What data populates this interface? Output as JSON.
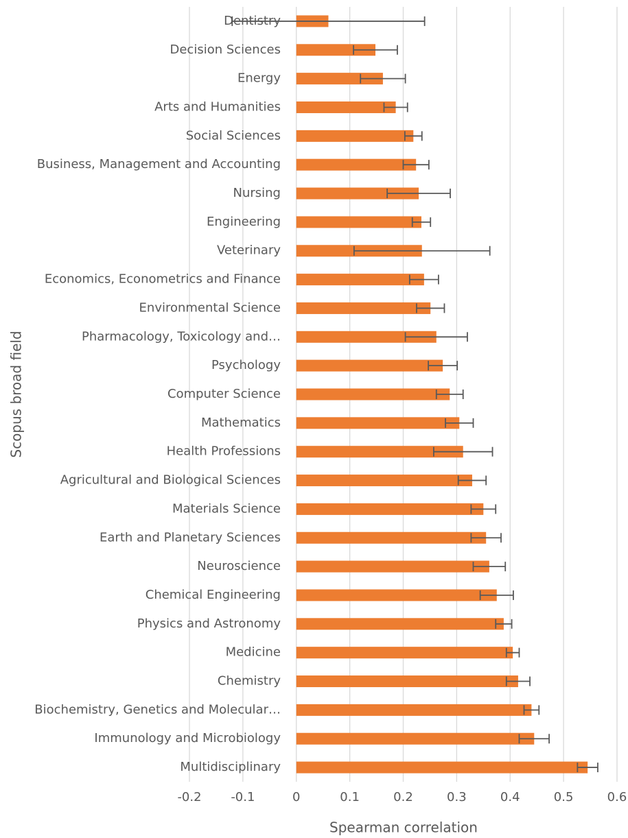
{
  "chart_data": {
    "type": "bar",
    "orientation": "horizontal",
    "x_axis_label": "Spearman correlation",
    "y_axis_label": "Scopus broad field",
    "categories": [
      "Dentistry",
      "Decision Sciences",
      "Energy",
      "Arts and Humanities",
      "Social Sciences",
      "Business, Management and Accounting",
      "Nursing",
      "Engineering",
      "Veterinary",
      "Economics, Econometrics and Finance",
      "Environmental Science",
      "Pharmacology, Toxicology and…",
      "Psychology",
      "Computer Science",
      "Mathematics",
      "Health Professions",
      "Agricultural and Biological Sciences",
      "Materials Science",
      "Earth and Planetary Sciences",
      "Neuroscience",
      "Chemical Engineering",
      "Physics and Astronomy",
      "Medicine",
      "Chemistry",
      "Biochemistry, Genetics and Molecular…",
      "Immunology and Microbiology",
      "Multidisciplinary"
    ],
    "values": [
      0.06,
      0.148,
      0.162,
      0.186,
      0.219,
      0.224,
      0.229,
      0.234,
      0.235,
      0.239,
      0.251,
      0.262,
      0.274,
      0.287,
      0.305,
      0.312,
      0.329,
      0.35,
      0.355,
      0.361,
      0.375,
      0.388,
      0.405,
      0.415,
      0.44,
      0.445,
      0.545
    ],
    "errors": [
      0.18,
      0.041,
      0.042,
      0.022,
      0.016,
      0.024,
      0.059,
      0.017,
      0.127,
      0.027,
      0.026,
      0.058,
      0.027,
      0.025,
      0.026,
      0.055,
      0.026,
      0.023,
      0.028,
      0.03,
      0.031,
      0.015,
      0.012,
      0.022,
      0.014,
      0.028,
      0.019
    ],
    "color": "#ed7d31",
    "error_color": "#595959",
    "xlim": [
      -0.2,
      0.6
    ],
    "xticks": [
      -0.2,
      -0.1,
      0,
      0.1,
      0.2,
      0.3,
      0.4,
      0.5,
      0.6
    ],
    "grid": true
  }
}
